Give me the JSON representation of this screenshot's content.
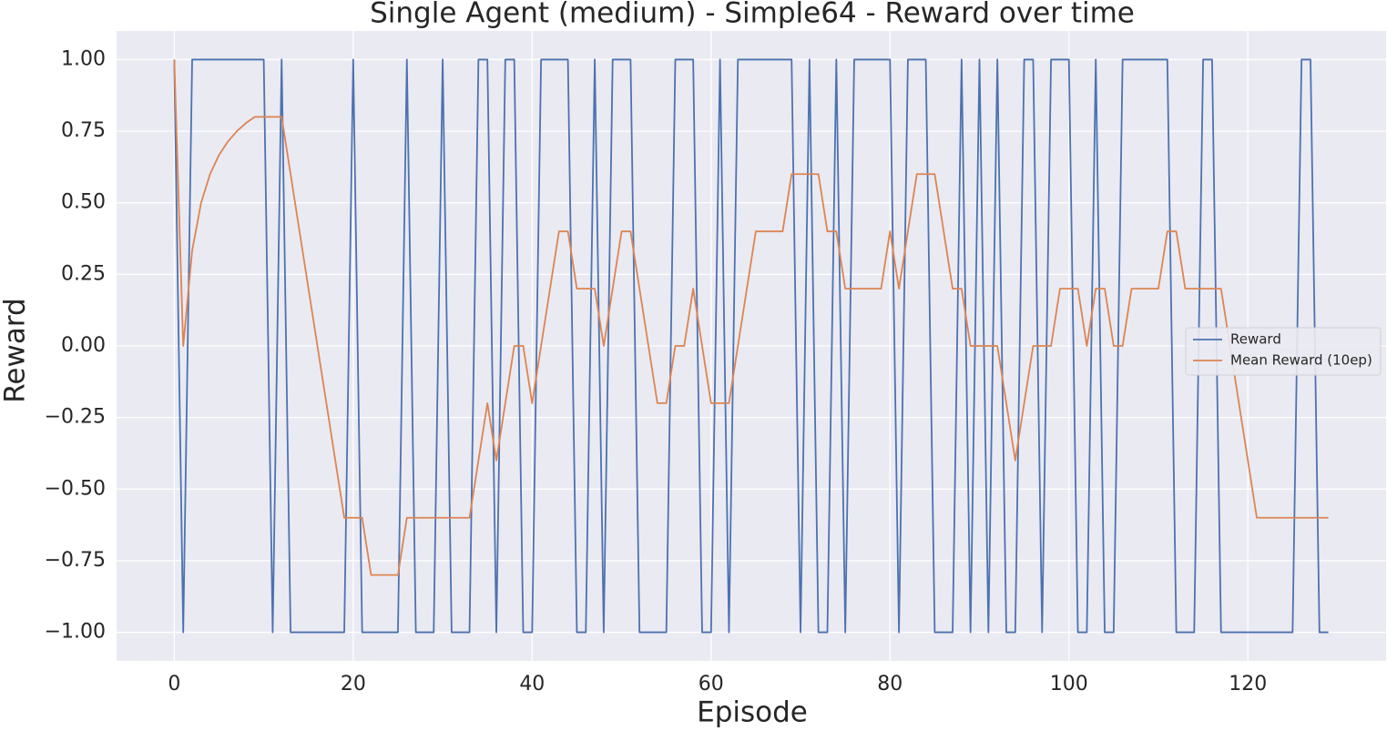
{
  "chart_data": {
    "type": "line",
    "title": "Single Agent (medium) - Simple64 - Reward over time",
    "x_label": "Episode",
    "y_label": "Reward",
    "x": [
      0,
      1,
      2,
      3,
      4,
      5,
      6,
      7,
      8,
      9,
      10,
      11,
      12,
      13,
      14,
      15,
      16,
      17,
      18,
      19,
      20,
      21,
      22,
      23,
      24,
      25,
      26,
      27,
      28,
      29,
      30,
      31,
      32,
      33,
      34,
      35,
      36,
      37,
      38,
      39,
      40,
      41,
      42,
      43,
      44,
      45,
      46,
      47,
      48,
      49,
      50,
      51,
      52,
      53,
      54,
      55,
      56,
      57,
      58,
      59,
      60,
      61,
      62,
      63,
      64,
      65,
      66,
      67,
      68,
      69,
      70,
      71,
      72,
      73,
      74,
      75,
      76,
      77,
      78,
      79,
      80,
      81,
      82,
      83,
      84,
      85,
      86,
      87,
      88,
      89,
      90,
      91,
      92,
      93,
      94,
      95,
      96,
      97,
      98,
      99,
      100,
      101,
      102,
      103,
      104,
      105,
      106,
      107,
      108,
      109,
      110,
      111,
      112,
      113,
      114,
      115,
      116,
      117,
      118,
      119,
      120,
      121,
      122,
      123,
      124,
      125,
      126,
      127,
      128,
      129
    ],
    "series": [
      {
        "name": "Reward",
        "color": "#4c72b0",
        "values": [
          1,
          -1,
          1,
          1,
          1,
          1,
          1,
          1,
          1,
          1,
          1,
          -1,
          1,
          -1,
          -1,
          -1,
          -1,
          -1,
          -1,
          -1,
          1,
          -1,
          -1,
          -1,
          -1,
          -1,
          1,
          -1,
          -1,
          -1,
          1,
          -1,
          -1,
          -1,
          1,
          1,
          -1,
          1,
          1,
          -1,
          -1,
          1,
          1,
          1,
          1,
          -1,
          -1,
          1,
          -1,
          1,
          1,
          1,
          -1,
          -1,
          -1,
          -1,
          1,
          1,
          1,
          -1,
          -1,
          1,
          -1,
          1,
          1,
          1,
          1,
          1,
          1,
          1,
          -1,
          1,
          -1,
          -1,
          1,
          -1,
          1,
          1,
          1,
          1,
          1,
          -1,
          1,
          1,
          1,
          -1,
          -1,
          -1,
          1,
          -1,
          1,
          -1,
          1,
          -1,
          -1,
          1,
          1,
          -1,
          1,
          1,
          1,
          -1,
          -1,
          1,
          -1,
          -1,
          1,
          1,
          1,
          1,
          1,
          1,
          -1,
          -1,
          -1,
          1,
          1,
          -1,
          -1,
          -1,
          -1,
          -1,
          -1,
          -1,
          -1,
          -1,
          1,
          1,
          -1,
          -1
        ]
      },
      {
        "name": "Mean Reward (10ep)",
        "color": "#dd8452",
        "values": [
          1,
          0,
          0.333,
          0.5,
          0.6,
          0.667,
          0.714,
          0.75,
          0.778,
          0.8,
          0.8,
          0.8,
          0.8,
          0.6,
          0.4,
          0.2,
          0,
          -0.2,
          -0.4,
          -0.6,
          -0.6,
          -0.6,
          -0.8,
          -0.8,
          -0.8,
          -0.8,
          -0.6,
          -0.6,
          -0.6,
          -0.6,
          -0.6,
          -0.6,
          -0.6,
          -0.6,
          -0.4,
          -0.2,
          -0.4,
          -0.2,
          0,
          0,
          -0.2,
          0,
          0.2,
          0.4,
          0.4,
          0.2,
          0.2,
          0.2,
          0,
          0.2,
          0.4,
          0.4,
          0.2,
          0,
          -0.2,
          -0.2,
          0,
          0,
          0.2,
          0,
          -0.2,
          -0.2,
          -0.2,
          0,
          0.2,
          0.4,
          0.4,
          0.4,
          0.4,
          0.6,
          0.6,
          0.6,
          0.6,
          0.4,
          0.4,
          0.2,
          0.2,
          0.2,
          0.2,
          0.2,
          0.4,
          0.2,
          0.4,
          0.6,
          0.6,
          0.6,
          0.4,
          0.2,
          0.2,
          0,
          0,
          0,
          0,
          -0.2,
          -0.4,
          -0.2,
          0,
          0,
          0,
          0.2,
          0.2,
          0.2,
          0,
          0.2,
          0.2,
          0,
          0,
          0.2,
          0.2,
          0.2,
          0.2,
          0.4,
          0.4,
          0.2,
          0.2,
          0.2,
          0.2,
          0.2,
          0,
          -0.2,
          -0.4,
          -0.6,
          -0.6,
          -0.6,
          -0.6,
          -0.6,
          -0.6,
          -0.6,
          -0.6,
          -0.6
        ]
      }
    ],
    "xlim": [
      -6.45,
      135.45
    ],
    "ylim": [
      -1.1,
      1.1
    ],
    "xticks": [
      0,
      20,
      40,
      60,
      80,
      100,
      120
    ],
    "yticks": [
      {
        "value": -1,
        "label": "−1.00"
      },
      {
        "value": -0.75,
        "label": "−0.75"
      },
      {
        "value": -0.5,
        "label": "−0.50"
      },
      {
        "value": -0.25,
        "label": "−0.25"
      },
      {
        "value": 0,
        "label": "0.00"
      },
      {
        "value": 0.25,
        "label": "0.25"
      },
      {
        "value": 0.5,
        "label": "0.50"
      },
      {
        "value": 0.75,
        "label": "0.75"
      },
      {
        "value": 1,
        "label": "1.00"
      }
    ],
    "grid": true,
    "legend": "center right"
  }
}
